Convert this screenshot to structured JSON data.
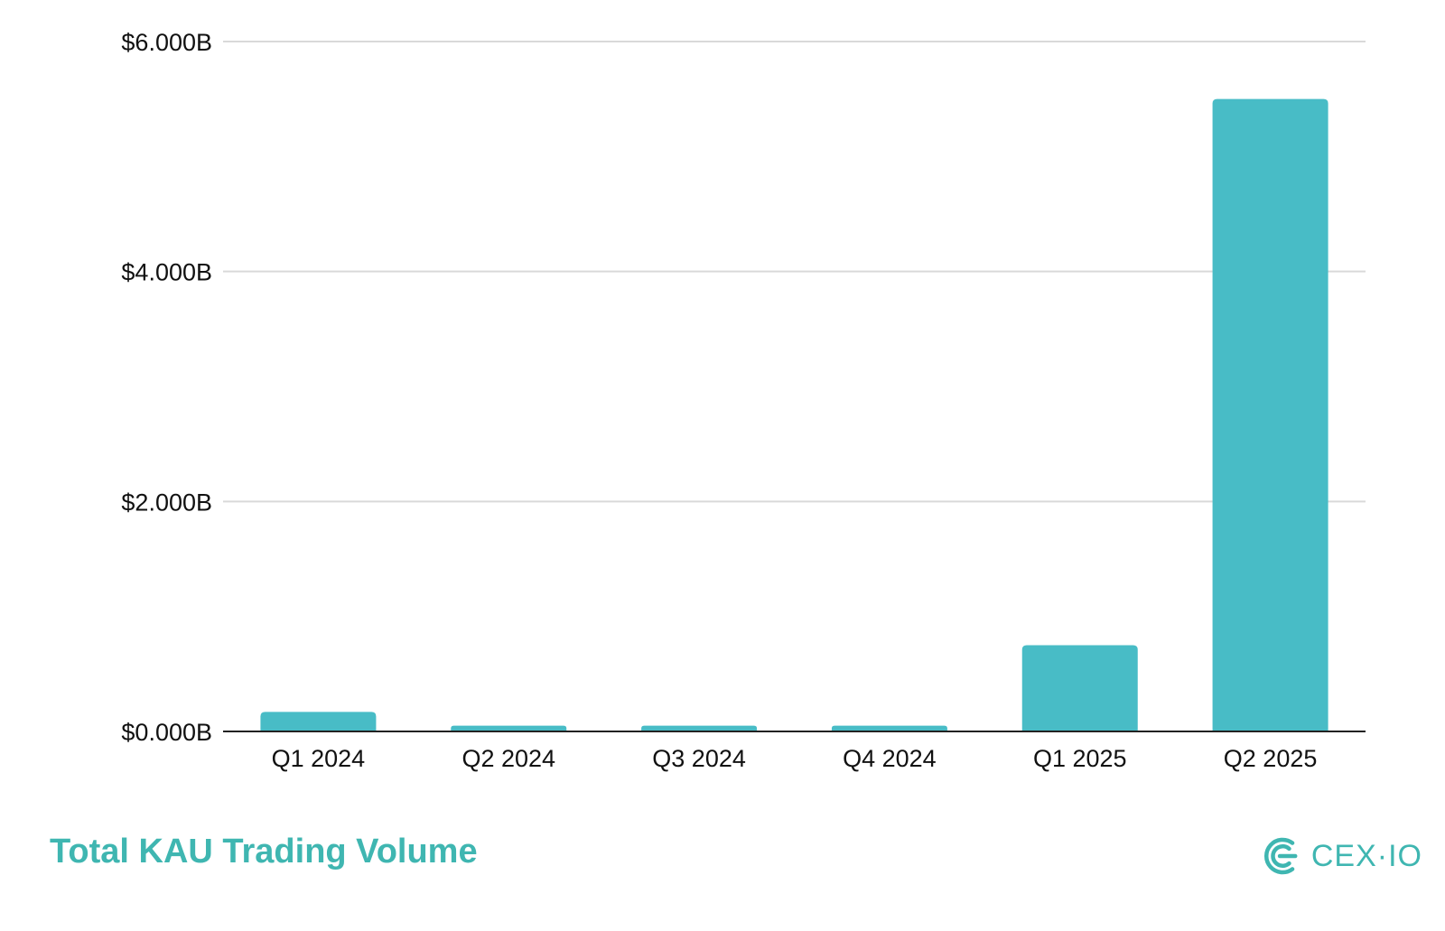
{
  "colors": {
    "bar": "#48bcc6",
    "gridline": "#d9d9d9",
    "axis": "#222222",
    "title": "#3fb6b1",
    "logo": "#3fb6b1"
  },
  "chart_data": {
    "type": "bar",
    "categories": [
      "Q1 2024",
      "Q2 2024",
      "Q3 2024",
      "Q4 2024",
      "Q1 2025",
      "Q2 2025"
    ],
    "values": [
      0.17,
      0.05,
      0.05,
      0.05,
      0.75,
      5.5
    ],
    "unit": "billion USD",
    "ylim": [
      0,
      6
    ],
    "yticks": [
      0,
      2,
      4,
      6
    ],
    "ytick_labels": [
      "$0.000B",
      "$2.000B",
      "$4.000B",
      "$6.000B"
    ],
    "xlabel": "",
    "ylabel": "",
    "grid": true,
    "legend": "none"
  },
  "footer": {
    "title": "Total KAU Trading Volume",
    "logo_text": "CEX·IO",
    "logo_icon": "cex-io-logo-icon"
  }
}
